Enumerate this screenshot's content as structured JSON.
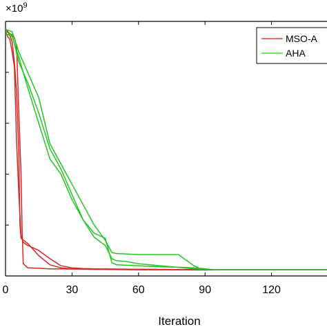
{
  "chart_data": {
    "type": "line",
    "title": "",
    "xlabel": "Iteration",
    "ylabel": "",
    "y_exponent_prefix": "×10",
    "y_exponent": "9",
    "xlim": [
      0,
      150
    ],
    "ylim": [
      0,
      2.5
    ],
    "x_ticks": [
      0,
      30,
      60,
      90,
      120
    ],
    "x_tick_labels": [
      "0",
      "30",
      "60",
      "90",
      "120"
    ],
    "y_ticks": [
      0.5,
      1.0,
      1.5,
      2.0
    ],
    "grid": false,
    "legend_position": "top-right",
    "legend": [
      {
        "label": "MSO-A",
        "color": "#e23b3b"
      },
      {
        "label": "AHA",
        "color": "#3ed93e"
      }
    ],
    "series": [
      {
        "name": "MSO-A",
        "color": "#d62626",
        "x": [
          0,
          2,
          4,
          5,
          6,
          7,
          7.5,
          8,
          10,
          15,
          20,
          25,
          30,
          40,
          60,
          90,
          150
        ],
        "y": [
          2.42,
          2.38,
          2.34,
          2.25,
          1.6,
          1.0,
          0.45,
          0.12,
          0.08,
          0.075,
          0.07,
          0.07,
          0.068,
          0.065,
          0.06,
          0.06,
          0.06
        ]
      },
      {
        "name": "MSO-A",
        "color": "#d62626",
        "x": [
          0,
          1,
          2,
          3,
          4,
          5,
          6,
          7,
          8,
          10,
          15,
          20,
          25,
          30,
          35,
          40,
          50,
          60,
          90,
          150
        ],
        "y": [
          2.4,
          2.35,
          2.32,
          2.2,
          2.05,
          1.3,
          0.8,
          0.4,
          0.33,
          0.3,
          0.25,
          0.17,
          0.1,
          0.08,
          0.073,
          0.07,
          0.068,
          0.065,
          0.06,
          0.06
        ]
      },
      {
        "name": "MSO-A",
        "color": "#d62626",
        "x": [
          0,
          1,
          2,
          3,
          4,
          5,
          6,
          6.5,
          7,
          10,
          15,
          20,
          25,
          30,
          40,
          60,
          90,
          150
        ],
        "y": [
          2.43,
          2.4,
          2.36,
          2.3,
          2.1,
          1.8,
          1.2,
          0.5,
          0.37,
          0.32,
          0.2,
          0.11,
          0.08,
          0.07,
          0.068,
          0.065,
          0.06,
          0.06
        ]
      },
      {
        "name": "AHA",
        "color": "#22c522",
        "x": [
          0,
          3,
          6,
          10,
          15,
          20,
          25,
          30,
          35,
          40,
          45,
          48,
          50,
          60,
          70,
          78,
          85,
          88,
          90,
          95,
          150
        ],
        "y": [
          2.42,
          2.4,
          2.2,
          2.0,
          1.75,
          1.3,
          1.1,
          0.9,
          0.7,
          0.5,
          0.35,
          0.23,
          0.22,
          0.21,
          0.21,
          0.21,
          0.1,
          0.07,
          0.065,
          0.06,
          0.06
        ]
      },
      {
        "name": "AHA",
        "color": "#22c522",
        "x": [
          0,
          3,
          6,
          10,
          15,
          20,
          25,
          30,
          35,
          40,
          45,
          48,
          50,
          55,
          60,
          70,
          80,
          85,
          90,
          95,
          150
        ],
        "y": [
          2.38,
          2.35,
          2.15,
          1.85,
          1.5,
          1.15,
          1.0,
          0.75,
          0.55,
          0.38,
          0.3,
          0.17,
          0.15,
          0.14,
          0.12,
          0.1,
          0.08,
          0.07,
          0.065,
          0.06,
          0.06
        ]
      },
      {
        "name": "AHA",
        "color": "#22c522",
        "x": [
          0,
          3,
          6,
          10,
          15,
          20,
          25,
          30,
          35,
          40,
          45,
          48,
          50,
          60,
          70,
          80,
          88,
          92,
          95,
          150
        ],
        "y": [
          2.4,
          2.37,
          2.1,
          1.9,
          1.6,
          1.25,
          1.05,
          0.8,
          0.55,
          0.42,
          0.37,
          0.13,
          0.11,
          0.1,
          0.09,
          0.085,
          0.075,
          0.065,
          0.06,
          0.06
        ]
      }
    ]
  }
}
